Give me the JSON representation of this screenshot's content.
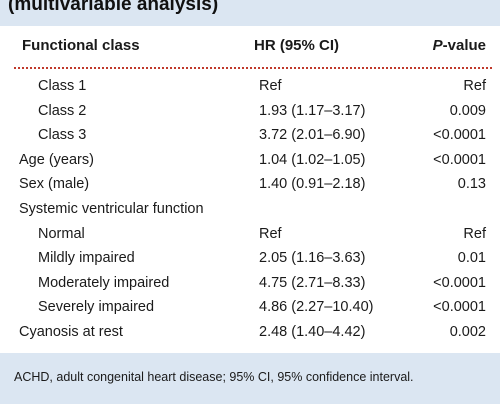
{
  "title": "(multivariable analysis)",
  "table": {
    "headers": {
      "label": "Functional class",
      "hr": "HR (95% CI)",
      "p_prefix": "P",
      "p_suffix": "-value"
    },
    "rows": [
      {
        "label": "Class 1",
        "hr": "Ref",
        "p": "Ref",
        "indent": true
      },
      {
        "label": "Class 2",
        "hr": "1.93 (1.17–3.17)",
        "p": "0.009",
        "indent": true
      },
      {
        "label": "Class 3",
        "hr": "3.72 (2.01–6.90)",
        "p": "<0.0001",
        "indent": true
      },
      {
        "label": "Age (years)",
        "hr": "1.04 (1.02–1.05)",
        "p": "<0.0001",
        "indent": false
      },
      {
        "label": "Sex (male)",
        "hr": "1.40 (0.91–2.18)",
        "p": "0.13",
        "indent": false
      },
      {
        "label": "Systemic ventricular function",
        "hr": "",
        "p": "",
        "indent": false
      },
      {
        "label": "Normal",
        "hr": "Ref",
        "p": "Ref",
        "indent": true
      },
      {
        "label": "Mildly impaired",
        "hr": "2.05 (1.16–3.63)",
        "p": "0.01",
        "indent": true
      },
      {
        "label": "Moderately impaired",
        "hr": "4.75 (2.71–8.33)",
        "p": "<0.0001",
        "indent": true
      },
      {
        "label": "Severely impaired",
        "hr": "4.86 (2.27–10.40)",
        "p": "<0.0001",
        "indent": true
      },
      {
        "label": "Cyanosis at rest",
        "hr": "2.48 (1.40–4.42)",
        "p": "0.002",
        "indent": false
      }
    ]
  },
  "footnote": "ACHD, adult congenital heart disease; 95% CI, 95% confidence interval.",
  "colors": {
    "panel_background": "#dbe6f2",
    "divider": "#c0392b"
  }
}
